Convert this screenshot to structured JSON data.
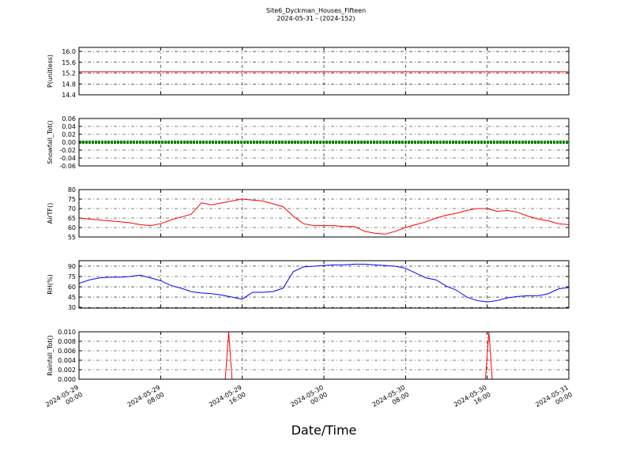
{
  "title": "Site6_Dyckman_Houses_Fifteen",
  "subtitle": "2024-05-31 - (2024-152)",
  "xlabel": "Date/Time",
  "xlim": [
    "2024-05-29 00:00",
    "2024-05-31 00:00"
  ],
  "xticks": [
    "2024-05-29 00:00",
    "2024-05-29 08:00",
    "2024-05-29 16:00",
    "2024-05-30 00:00",
    "2024-05-30 08:00",
    "2024-05-30 16:00",
    "2024-05-31 00:00"
  ],
  "chart_data": [
    {
      "type": "line",
      "ylabel": "P(unitless)",
      "color": "#ff0000",
      "grid": true,
      "x": [
        "2024-05-29 00:00",
        "2024-05-31 00:00"
      ],
      "values": [
        15.25,
        15.25
      ],
      "ylim": [
        14.4,
        16.15
      ],
      "yticks": [
        14.4,
        14.8,
        15.2,
        15.6,
        {
          "value": 16,
          "label": "16.0"
        }
      ]
    },
    {
      "type": "dots",
      "ylabel": "Snowfall_Tot()",
      "color": "#008000",
      "grid": true,
      "x": [
        "2024-05-29 00:00",
        "2024-05-31 00:00"
      ],
      "values": [
        0,
        0
      ],
      "ylim": [
        -0.06,
        0.06
      ],
      "yticks": [
        -0.06,
        -0.04,
        -0.02,
        {
          "value": 0,
          "label": "0.00"
        },
        0.02,
        0.04,
        0.06
      ]
    },
    {
      "type": "line",
      "ylabel": "AirTF()",
      "color": "#ff0000",
      "grid": true,
      "x": [
        "2024-05-29 00:00",
        "2024-05-29 01:00",
        "2024-05-29 02:00",
        "2024-05-29 03:00",
        "2024-05-29 04:00",
        "2024-05-29 05:00",
        "2024-05-29 06:00",
        "2024-05-29 07:00",
        "2024-05-29 08:00",
        "2024-05-29 09:00",
        "2024-05-29 10:00",
        "2024-05-29 11:00",
        "2024-05-29 12:00",
        "2024-05-29 13:00",
        "2024-05-29 14:00",
        "2024-05-29 15:00",
        "2024-05-29 16:00",
        "2024-05-29 17:00",
        "2024-05-29 18:00",
        "2024-05-29 19:00",
        "2024-05-29 20:00",
        "2024-05-29 21:00",
        "2024-05-29 22:00",
        "2024-05-29 23:00",
        "2024-05-30 00:00",
        "2024-05-30 01:00",
        "2024-05-30 02:00",
        "2024-05-30 03:00",
        "2024-05-30 04:00",
        "2024-05-30 05:00",
        "2024-05-30 06:00",
        "2024-05-30 07:00",
        "2024-05-30 08:00",
        "2024-05-30 09:00",
        "2024-05-30 10:00",
        "2024-05-30 11:00",
        "2024-05-30 12:00",
        "2024-05-30 13:00",
        "2024-05-30 14:00",
        "2024-05-30 15:00",
        "2024-05-30 16:00",
        "2024-05-30 17:00",
        "2024-05-30 18:00",
        "2024-05-30 19:00",
        "2024-05-30 20:00",
        "2024-05-30 21:00",
        "2024-05-30 22:00",
        "2024-05-30 23:00",
        "2024-05-31 00:00"
      ],
      "values": [
        65,
        64.5,
        64,
        63.5,
        63,
        62.5,
        61.5,
        61,
        62,
        64,
        65.5,
        67,
        73,
        72,
        73,
        74,
        75,
        74.5,
        74,
        72.5,
        71,
        66,
        62,
        61,
        61,
        61,
        60.5,
        60.5,
        58,
        57,
        56.5,
        58,
        60,
        61.5,
        63,
        65,
        66.5,
        67.5,
        69,
        70,
        70,
        68.5,
        69,
        68,
        66,
        64.5,
        63.5,
        62,
        61.5
      ],
      "ylim": [
        55,
        80
      ],
      "yticks": [
        55,
        60,
        65,
        70,
        75,
        80
      ]
    },
    {
      "type": "line",
      "ylabel": "RH(%)",
      "color": "#0000ff",
      "grid": true,
      "x": [
        "2024-05-29 00:00",
        "2024-05-29 01:00",
        "2024-05-29 02:00",
        "2024-05-29 03:00",
        "2024-05-29 04:00",
        "2024-05-29 05:00",
        "2024-05-29 06:00",
        "2024-05-29 07:00",
        "2024-05-29 08:00",
        "2024-05-29 09:00",
        "2024-05-29 10:00",
        "2024-05-29 11:00",
        "2024-05-29 12:00",
        "2024-05-29 13:00",
        "2024-05-29 14:00",
        "2024-05-29 15:00",
        "2024-05-29 16:00",
        "2024-05-29 17:00",
        "2024-05-29 18:00",
        "2024-05-29 19:00",
        "2024-05-29 20:00",
        "2024-05-29 21:00",
        "2024-05-29 22:00",
        "2024-05-29 23:00",
        "2024-05-30 00:00",
        "2024-05-30 01:00",
        "2024-05-30 02:00",
        "2024-05-30 03:00",
        "2024-05-30 04:00",
        "2024-05-30 05:00",
        "2024-05-30 06:00",
        "2024-05-30 07:00",
        "2024-05-30 08:00",
        "2024-05-30 09:00",
        "2024-05-30 10:00",
        "2024-05-30 11:00",
        "2024-05-30 12:00",
        "2024-05-30 13:00",
        "2024-05-30 14:00",
        "2024-05-30 15:00",
        "2024-05-30 16:00",
        "2024-05-30 17:00",
        "2024-05-30 18:00",
        "2024-05-30 19:00",
        "2024-05-30 20:00",
        "2024-05-30 21:00",
        "2024-05-30 22:00",
        "2024-05-30 23:00",
        "2024-05-31 00:00"
      ],
      "values": [
        65,
        70,
        73,
        74,
        74,
        75,
        77,
        73,
        69,
        62,
        58,
        53,
        51,
        50,
        48,
        45,
        42,
        52,
        52,
        53,
        58,
        82,
        89,
        90,
        91,
        92,
        92,
        93,
        93,
        92,
        91,
        90,
        87,
        80,
        73,
        70,
        61,
        55,
        45,
        40,
        38,
        40,
        44,
        46,
        47,
        47,
        50,
        57,
        59
      ],
      "ylim": [
        29,
        98
      ],
      "yticks": [
        30,
        45,
        60,
        75,
        90
      ]
    },
    {
      "type": "line",
      "ylabel": "Rainfall_Tot()",
      "color": "#ff0000",
      "grid": true,
      "x": [
        "2024-05-29 00:00",
        "2024-05-29 14:20",
        "2024-05-29 14:40",
        "2024-05-29 15:00",
        "2024-05-30 15:50",
        "2024-05-30 16:10",
        "2024-05-30 16:30",
        "2024-05-31 00:00"
      ],
      "values": [
        0,
        0,
        0.01,
        0,
        0,
        0.01,
        0,
        0
      ],
      "ylim": [
        0,
        0.01
      ],
      "yticks": [
        {
          "value": 0,
          "label": "0.000"
        },
        {
          "value": 0.002,
          "label": "0.002"
        },
        {
          "value": 0.004,
          "label": "0.004"
        },
        {
          "value": 0.006,
          "label": "0.006"
        },
        {
          "value": 0.008,
          "label": "0.008"
        },
        {
          "value": 0.01,
          "label": "0.010"
        }
      ]
    }
  ]
}
